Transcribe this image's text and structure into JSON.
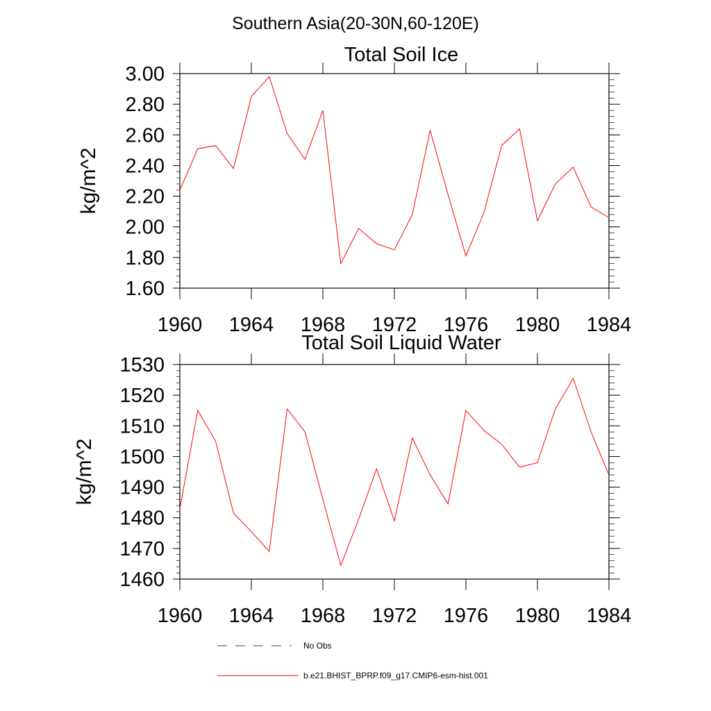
{
  "figure_title": "Southern Asia(20-30N,60-120E)",
  "chart_data": [
    {
      "type": "line",
      "title": "Total Soil Ice",
      "xlabel": "",
      "ylabel": "kg/m^2",
      "x": [
        1960,
        1961,
        1962,
        1963,
        1964,
        1965,
        1966,
        1967,
        1968,
        1969,
        1970,
        1971,
        1972,
        1973,
        1974,
        1975,
        1976,
        1977,
        1978,
        1979,
        1980,
        1981,
        1982,
        1983,
        1984
      ],
      "xlim": [
        1960,
        1984
      ],
      "ylim": [
        1.6,
        3.0
      ],
      "xticks": [
        1960,
        1964,
        1968,
        1972,
        1976,
        1980,
        1984
      ],
      "yticks": [
        1.6,
        1.8,
        2.0,
        2.2,
        2.4,
        2.6,
        2.8,
        3.0
      ],
      "xtick_labels": [
        "1960",
        "1964",
        "1968",
        "1972",
        "1976",
        "1980",
        "1984"
      ],
      "ytick_labels": [
        "1.60",
        "1.80",
        "2.00",
        "2.20",
        "2.40",
        "2.60",
        "2.80",
        "3.00"
      ],
      "grid": false,
      "series": [
        {
          "name": "b.e21.BHIST_BPRP.f09_g17.CMIP6-esm-hist.001",
          "color": "#ff0000",
          "values": [
            2.24,
            2.51,
            2.53,
            2.38,
            2.85,
            2.98,
            2.61,
            2.44,
            2.76,
            1.76,
            1.99,
            1.89,
            1.85,
            2.08,
            2.63,
            2.21,
            1.81,
            2.09,
            2.53,
            2.64,
            2.04,
            2.28,
            2.39,
            2.13,
            2.06
          ]
        }
      ]
    },
    {
      "type": "line",
      "title": "Total Soil Liquid Water",
      "xlabel": "",
      "ylabel": "kg/m^2",
      "x": [
        1960,
        1961,
        1962,
        1963,
        1964,
        1965,
        1966,
        1967,
        1968,
        1969,
        1970,
        1971,
        1972,
        1973,
        1974,
        1975,
        1976,
        1977,
        1978,
        1979,
        1980,
        1981,
        1982,
        1983,
        1984
      ],
      "xlim": [
        1960,
        1984
      ],
      "ylim": [
        1460,
        1530
      ],
      "xticks": [
        1960,
        1964,
        1968,
        1972,
        1976,
        1980,
        1984
      ],
      "yticks": [
        1460,
        1470,
        1480,
        1490,
        1500,
        1510,
        1520,
        1530
      ],
      "xtick_labels": [
        "1960",
        "1964",
        "1968",
        "1972",
        "1976",
        "1980",
        "1984"
      ],
      "ytick_labels": [
        "1460",
        "1470",
        "1480",
        "1490",
        "1500",
        "1510",
        "1520",
        "1530"
      ],
      "grid": false,
      "series": [
        {
          "name": "b.e21.BHIST_BPRP.f09_g17.CMIP6-esm-hist.001",
          "color": "#ff0000",
          "values": [
            1483,
            1515,
            1505,
            1481.5,
            1475.5,
            1469,
            1515.5,
            1508,
            1486,
            1464.5,
            1479.5,
            1496,
            1479,
            1506,
            1494,
            1484.5,
            1515,
            1508.5,
            1504,
            1496.5,
            1498,
            1515.5,
            1525.5,
            1508,
            1494
          ]
        }
      ]
    }
  ],
  "legend": {
    "placement": "bottom",
    "entries": [
      {
        "label": "No Obs",
        "color": "#3a3a8c",
        "style": "dashed"
      },
      {
        "label": "b.e21.BHIST_BPRP.f09_g17.CMIP6-esm-hist.001",
        "color": "#ff0000",
        "style": "solid"
      }
    ]
  }
}
